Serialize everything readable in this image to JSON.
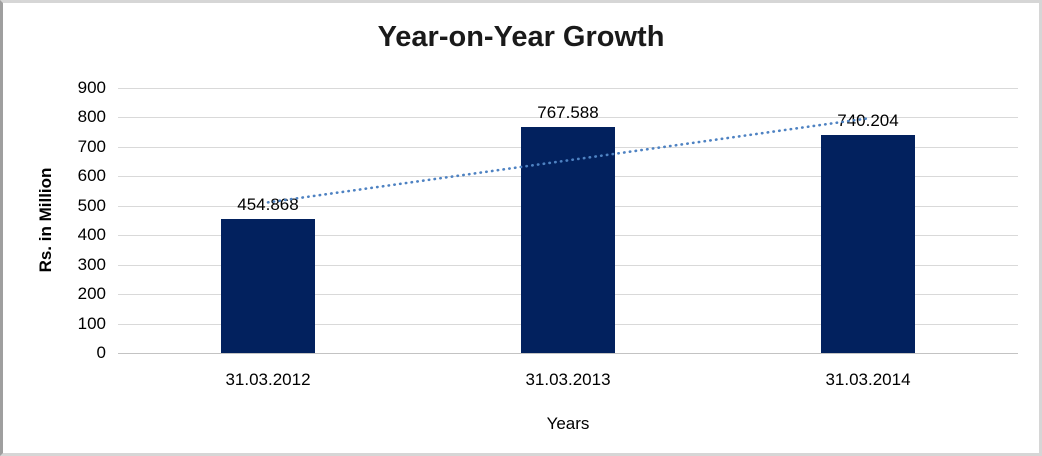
{
  "chart_data": {
    "type": "bar",
    "title": "Year-on-Year Growth",
    "xlabel": "Years",
    "ylabel": "Rs. in Million",
    "categories": [
      "31.03.2012",
      "31.03.2013",
      "31.03.2014"
    ],
    "values": [
      454.868,
      767.588,
      740.204
    ],
    "data_labels": [
      "454.868",
      "767.588",
      "740.204"
    ],
    "yticks": [
      0,
      100,
      200,
      300,
      400,
      500,
      600,
      700,
      800,
      900
    ],
    "ylim": [
      0,
      900
    ],
    "grid": "horizontal",
    "legend": "none",
    "trendline": {
      "type": "linear",
      "style": "dotted",
      "color": "#4e82c2"
    },
    "colors": {
      "bar": "#02215e",
      "gridline": "#d9d9d9",
      "axis_line": "#c3c3c3",
      "text": "#000000",
      "title_text": "#1a1a1a"
    }
  }
}
